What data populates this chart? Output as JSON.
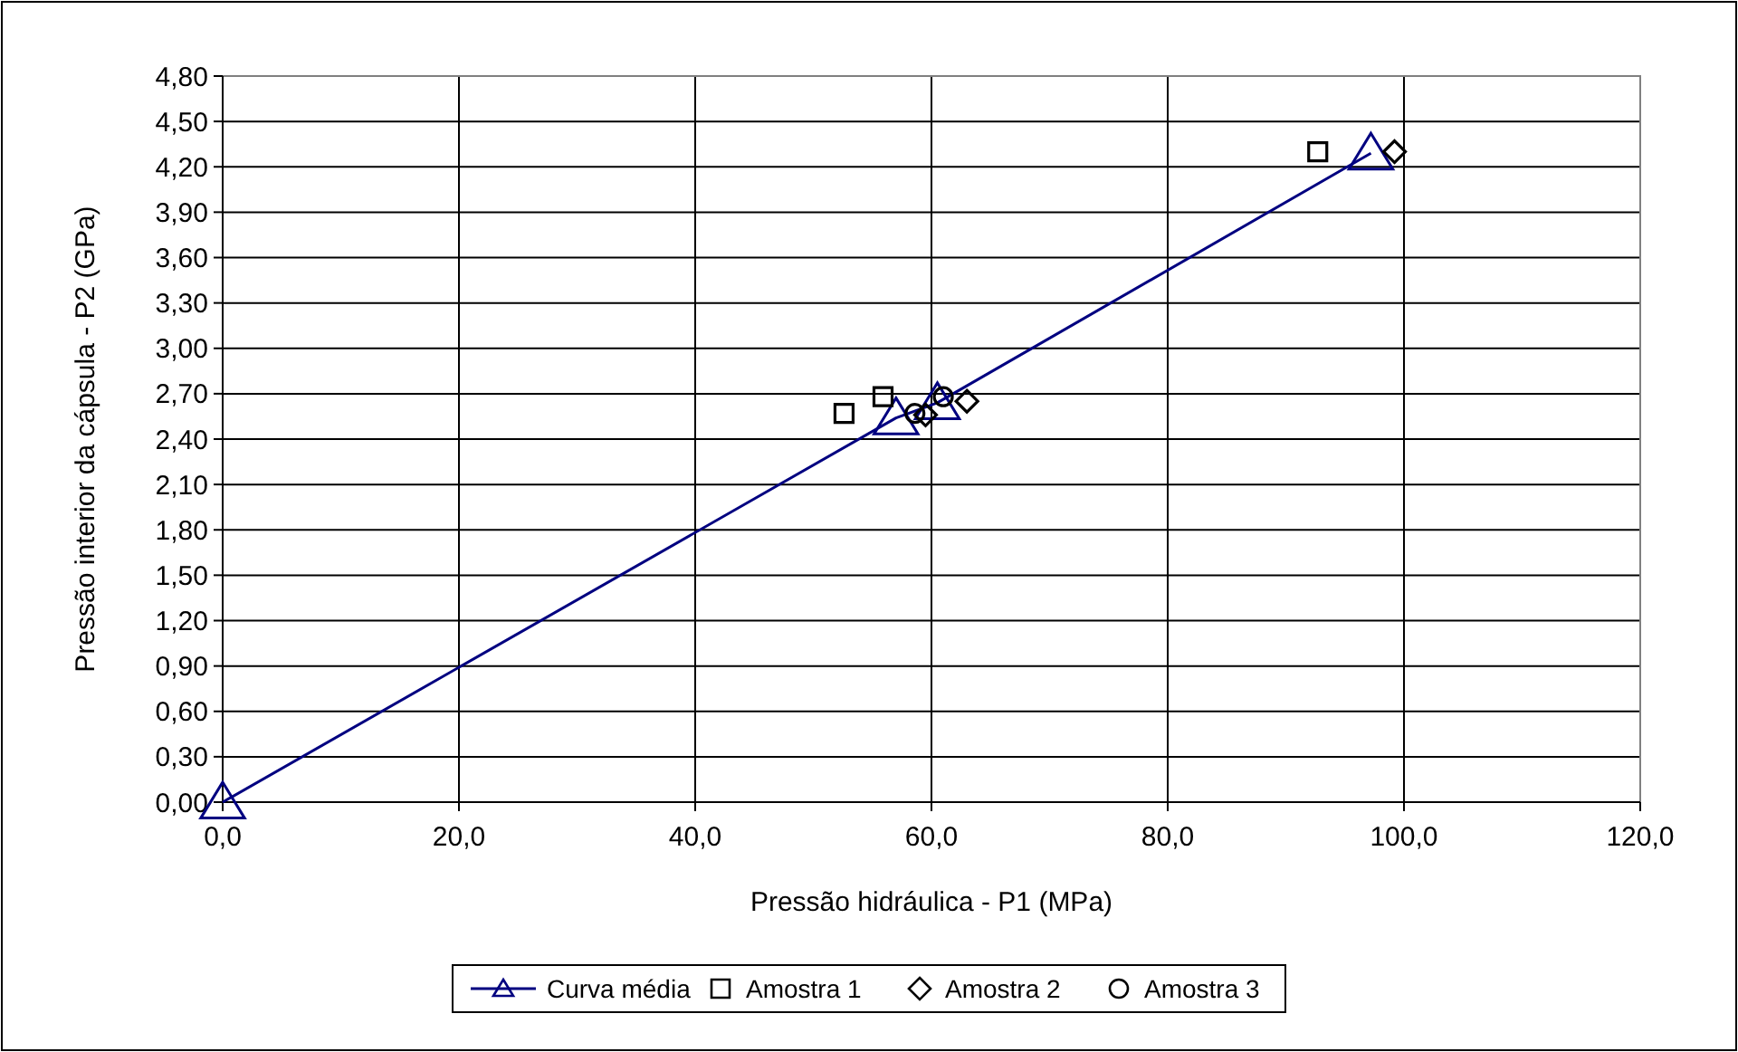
{
  "chart_data": {
    "type": "scatter",
    "xlabel": "Pressão hidráulica - P1 (MPa)",
    "ylabel": "Pressão interior da cápsula - P2 (GPa)",
    "xlim": [
      0,
      120
    ],
    "ylim": [
      0,
      4.8
    ],
    "xticks": [
      {
        "value": 0,
        "label": "0,0"
      },
      {
        "value": 20,
        "label": "20,0"
      },
      {
        "value": 40,
        "label": "40,0"
      },
      {
        "value": 60,
        "label": "60,0"
      },
      {
        "value": 80,
        "label": "80,0"
      },
      {
        "value": 100,
        "label": "100,0"
      },
      {
        "value": 120,
        "label": "120,0"
      }
    ],
    "yticks": [
      {
        "value": 0,
        "label": "0,00"
      },
      {
        "value": 0.3,
        "label": "0,30"
      },
      {
        "value": 0.6,
        "label": "0,60"
      },
      {
        "value": 0.9,
        "label": "0,90"
      },
      {
        "value": 1.2,
        "label": "1,20"
      },
      {
        "value": 1.5,
        "label": "1,50"
      },
      {
        "value": 1.8,
        "label": "1,80"
      },
      {
        "value": 2.1,
        "label": "2,10"
      },
      {
        "value": 2.4,
        "label": "2,40"
      },
      {
        "value": 2.7,
        "label": "2,70"
      },
      {
        "value": 3.0,
        "label": "3,00"
      },
      {
        "value": 3.3,
        "label": "3,30"
      },
      {
        "value": 3.6,
        "label": "3,60"
      },
      {
        "value": 3.9,
        "label": "3,90"
      },
      {
        "value": 4.2,
        "label": "4,20"
      },
      {
        "value": 4.5,
        "label": "4,50"
      },
      {
        "value": 4.8,
        "label": "4,80"
      }
    ],
    "grid": true,
    "legend": "bottom",
    "series": [
      {
        "name": "Curva média",
        "type": "line",
        "marker": "triangle",
        "line_style": "solid",
        "color": "#000080",
        "x": [
          0,
          57,
          60.5,
          97.2
        ],
        "values": [
          0,
          2.54,
          2.64,
          4.29
        ]
      },
      {
        "name": "Amostra 1",
        "marker": "square",
        "color": "#000000",
        "x": [
          52.6,
          55.9,
          92.7
        ],
        "values": [
          2.57,
          2.68,
          4.3
        ]
      },
      {
        "name": "Amostra 2",
        "marker": "diamond",
        "color": "#000000",
        "x": [
          59.5,
          63.0,
          99.2
        ],
        "values": [
          2.56,
          2.65,
          4.3
        ]
      },
      {
        "name": "Amostra 3",
        "marker": "circle",
        "color": "#000000",
        "x": [
          58.6,
          61.0
        ],
        "values": [
          2.57,
          2.68
        ]
      }
    ]
  }
}
